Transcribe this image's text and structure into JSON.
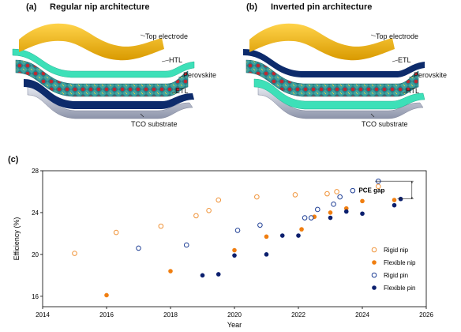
{
  "panel_a": {
    "tag": "(a)",
    "title": "Regular nip architecture",
    "layers": [
      "Top electrode",
      "HTL",
      "Perovskite",
      "ETL",
      "TCO substrate"
    ]
  },
  "panel_b": {
    "tag": "(b)",
    "title": "Inverted pin architecture",
    "layers": [
      "Top electrode",
      "ETL",
      "Perovskite",
      "HTL",
      "TCO substrate"
    ]
  },
  "panel_c": {
    "tag": "(c)"
  },
  "colors": {
    "electrode": "#f2b600",
    "htl": "#3de0b8",
    "etl": "#0d2b6b",
    "tco": "#b9bfd2",
    "perovskite_red": "#c0282f",
    "perovskite_oct": "#2e8f8c",
    "rigid_nip": "#f0943a",
    "flexible_nip": "#f07e10",
    "rigid_pin": "#1f3f95",
    "flexible_pin": "#0b1f6e"
  },
  "chart_data": {
    "type": "scatter",
    "title": "",
    "xlabel": "Year",
    "ylabel": "Efficiency (%)",
    "xlim": [
      2014,
      2026
    ],
    "ylim": [
      15,
      28
    ],
    "xticks": [
      2014,
      2016,
      2018,
      2020,
      2022,
      2024,
      2026
    ],
    "yticks": [
      16,
      20,
      24,
      28
    ],
    "grid": false,
    "legend_position": "right",
    "annotation": "PCE gap",
    "series": [
      {
        "name": "Rigid nip",
        "marker": "open",
        "points": [
          [
            2015.0,
            20.1
          ],
          [
            2016.3,
            22.1
          ],
          [
            2017.7,
            22.7
          ],
          [
            2018.8,
            23.7
          ],
          [
            2019.2,
            24.2
          ],
          [
            2019.5,
            25.2
          ],
          [
            2020.7,
            25.5
          ],
          [
            2021.9,
            25.7
          ],
          [
            2022.9,
            25.8
          ],
          [
            2023.2,
            26.0
          ],
          [
            2024.5,
            26.5
          ]
        ]
      },
      {
        "name": "Flexible nip",
        "marker": "filled",
        "points": [
          [
            2016.0,
            16.1
          ],
          [
            2018.0,
            18.4
          ],
          [
            2020.0,
            20.4
          ],
          [
            2021.0,
            21.7
          ],
          [
            2022.1,
            22.4
          ],
          [
            2022.5,
            23.6
          ],
          [
            2023.0,
            24.0
          ],
          [
            2023.5,
            24.4
          ],
          [
            2024.0,
            25.1
          ],
          [
            2025.0,
            25.2
          ]
        ]
      },
      {
        "name": "Rigid pin",
        "marker": "open",
        "points": [
          [
            2017.0,
            20.6
          ],
          [
            2018.5,
            20.9
          ],
          [
            2020.1,
            22.3
          ],
          [
            2020.8,
            22.8
          ],
          [
            2022.2,
            23.5
          ],
          [
            2022.4,
            23.5
          ],
          [
            2022.6,
            24.3
          ],
          [
            2023.1,
            24.8
          ],
          [
            2023.3,
            25.5
          ],
          [
            2023.7,
            26.1
          ],
          [
            2024.5,
            27.0
          ]
        ]
      },
      {
        "name": "Flexible pin",
        "marker": "filled",
        "points": [
          [
            2019.0,
            18.0
          ],
          [
            2019.5,
            18.1
          ],
          [
            2020.0,
            19.9
          ],
          [
            2021.0,
            20.0
          ],
          [
            2021.5,
            21.8
          ],
          [
            2022.0,
            21.8
          ],
          [
            2023.0,
            23.5
          ],
          [
            2023.5,
            24.1
          ],
          [
            2024.0,
            23.9
          ],
          [
            2025.0,
            24.7
          ],
          [
            2025.2,
            25.3
          ]
        ]
      }
    ]
  }
}
